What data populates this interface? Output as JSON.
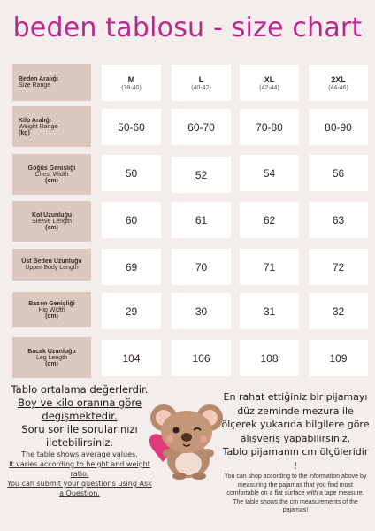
{
  "title": "beden tablosu - size chart",
  "header": {
    "label_tr": "Beden Aralığı",
    "label_en": "Size Range",
    "sizes": [
      {
        "size": "M",
        "range": "(38-40)"
      },
      {
        "size": "L",
        "range": "(40-42)"
      },
      {
        "size": "XL",
        "range": "(42-44)"
      },
      {
        "size": "2XL",
        "range": "(44-46)"
      }
    ]
  },
  "rows": [
    {
      "tr": "Kilo Aralığı",
      "en": "Weight Range",
      "unit": "(kg)",
      "values": [
        "50-60",
        "60-70",
        "70-80",
        "80-90"
      ]
    },
    {
      "tr": "Göğüs Genişliği",
      "en": "Chest Width",
      "unit": "(cm)",
      "values": [
        "50",
        "52",
        "54",
        "56"
      ]
    },
    {
      "tr": "Kol Uzunluğu",
      "en": "Sleeve Length",
      "unit": "(cm)",
      "values": [
        "60",
        "61",
        "62",
        "63"
      ]
    },
    {
      "tr": "Üst Beden Uzunluğu",
      "en": "Upper Body Length",
      "unit": "(cm)",
      "values": [
        "69",
        "70",
        "71",
        "72"
      ]
    },
    {
      "tr": "Basen Genişliği",
      "en": "Hip Width",
      "unit": "(cm)",
      "values": [
        "29",
        "30",
        "31",
        "32"
      ]
    },
    {
      "tr": "Bacak Uzunluğu",
      "en": "Leg Length",
      "unit": "(cm)",
      "values": [
        "104",
        "106",
        "108",
        "109"
      ]
    }
  ],
  "notes_left": {
    "tr1": "Tablo ortalama değerlerdir.",
    "tr2": "Boy ve kilo oranına göre değişmektedir.",
    "tr3": "Soru sor ile sorularınızı iletebilirsiniz.",
    "en1": "The table shows average values.",
    "en2": "It varies according to height and weight ratio.",
    "en3": "You can submit your questions using Ask a Question."
  },
  "notes_right": {
    "tr1": "En rahat ettiğiniz bir pijamayı düz zeminde mezura ile ölçerek yukarıda bilgilere göre alışveriş yapabilirsiniz.",
    "tr2": "Tablo pijamanın cm ölçüleridir !",
    "en1": "You can shop according to the information above by measuring the pajamas that you find most comfortable on a flat surface with a tape measure.",
    "en2": "The table shows the cm measurements of the pajamas!"
  },
  "colors": {
    "title": "#b62a8e",
    "label_bg": "#dcc8be",
    "page_bg": "#f3eeec",
    "cell_bg": "#ffffff"
  },
  "illustration": "koala-holding-heart-icon"
}
